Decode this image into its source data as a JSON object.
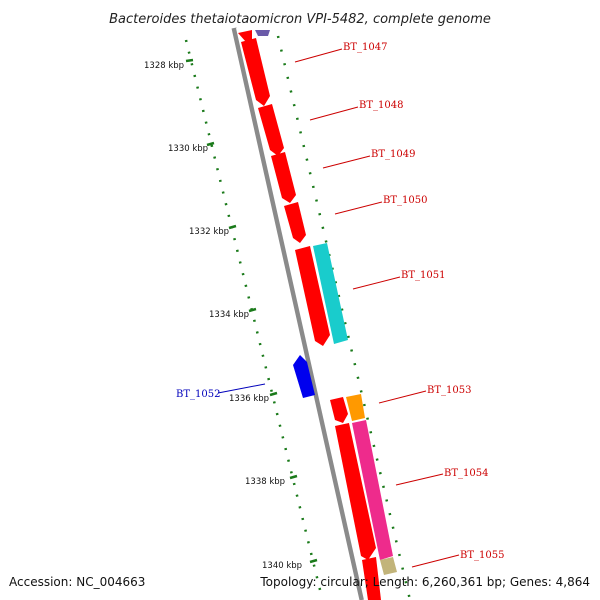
{
  "title": "Bacteroides thetaiotaomicron VPI-5482, complete genome",
  "footer": {
    "accession": "Accession: NC_004663",
    "summary": "Topology: circular; Length: 6,260,361 bp; Genes: 4,864"
  },
  "scale_labels": [
    "1328 kbp",
    "1330 kbp",
    "1332 kbp",
    "1334 kbp",
    "1336 kbp",
    "1338 kbp",
    "1340 kbp"
  ],
  "gene_labels": [
    {
      "name": "BT_1047",
      "color": "#cc0000"
    },
    {
      "name": "BT_1048",
      "color": "#cc0000"
    },
    {
      "name": "BT_1049",
      "color": "#cc0000"
    },
    {
      "name": "BT_1050",
      "color": "#cc0000"
    },
    {
      "name": "BT_1051",
      "color": "#cc0000"
    },
    {
      "name": "BT_1052",
      "color": "#0000bb"
    },
    {
      "name": "BT_1053",
      "color": "#cc0000"
    },
    {
      "name": "BT_1054",
      "color": "#cc0000"
    },
    {
      "name": "BT_1055",
      "color": "#cc0000"
    }
  ],
  "colors": {
    "backbone": "#8a8a8a",
    "tick": "#1a7a1a",
    "forward_gene": "#ff0000",
    "reverse_gene": "#0000ee",
    "cyan_gene": "#19cccc",
    "orange_gene": "#ff9900",
    "pink_gene": "#ee2b8c",
    "khaki_gene": "#c2b47a",
    "purple_gene": "#6a5aa8"
  }
}
